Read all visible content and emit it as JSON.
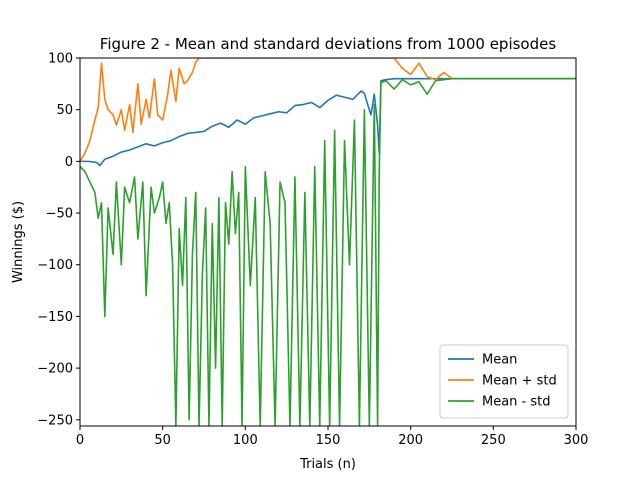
{
  "chart_data": {
    "type": "line",
    "title": "Figure 2 - Mean and standard deviations from 1000 episodes",
    "xlabel": "Trials (n)",
    "ylabel": "Winnings ($)",
    "xlim": [
      0,
      300
    ],
    "ylim": [
      -256,
      100
    ],
    "x_ticks": [
      0,
      50,
      100,
      150,
      200,
      250,
      300
    ],
    "y_ticks": [
      -250,
      -200,
      -150,
      -100,
      -50,
      0,
      50,
      100
    ],
    "x_tick_labels": [
      "0",
      "50",
      "100",
      "150",
      "200",
      "250",
      "300"
    ],
    "y_tick_labels": [
      "−250",
      "−200",
      "−150",
      "−100",
      "−50",
      "0",
      "50",
      "100"
    ],
    "grid": false,
    "legend_position": "lower-right",
    "series": [
      {
        "name": "Mean",
        "color": "#1f77b4",
        "x": [
          0,
          5,
          10,
          12,
          15,
          20,
          25,
          30,
          35,
          40,
          45,
          50,
          55,
          60,
          65,
          70,
          75,
          80,
          85,
          90,
          95,
          100,
          105,
          110,
          115,
          120,
          125,
          130,
          135,
          140,
          145,
          150,
          155,
          160,
          165,
          170,
          172,
          174,
          176,
          178,
          180,
          181,
          182,
          185,
          190,
          200,
          210,
          220,
          230,
          240,
          250,
          260,
          270,
          280,
          290,
          300
        ],
        "y": [
          0,
          0,
          -1,
          -4,
          2,
          5,
          9,
          11,
          14,
          17,
          15,
          18,
          20,
          24,
          27,
          28,
          29,
          34,
          37,
          33,
          40,
          36,
          42,
          44,
          46,
          48,
          47,
          54,
          55,
          57,
          52,
          59,
          64,
          62,
          60,
          68,
          66,
          55,
          45,
          65,
          35,
          8,
          78,
          79,
          80,
          80,
          80,
          80,
          80,
          80,
          80,
          80,
          80,
          80,
          80,
          80
        ]
      },
      {
        "name": "Mean + std",
        "color": "#ff7f0e",
        "x": [
          0,
          3,
          6,
          9,
          11,
          13,
          15,
          17,
          20,
          22,
          25,
          27,
          30,
          32,
          35,
          37,
          40,
          42,
          45,
          47,
          50,
          53,
          55,
          58,
          60,
          63,
          65,
          68,
          70,
          72,
          75,
          78,
          80,
          90,
          100,
          120,
          140,
          160,
          180,
          190,
          195,
          200,
          205,
          210,
          215,
          220,
          225,
          230,
          250,
          300
        ],
        "y": [
          0,
          8,
          20,
          40,
          52,
          95,
          60,
          50,
          45,
          35,
          50,
          30,
          55,
          28,
          75,
          36,
          60,
          42,
          80,
          45,
          40,
          64,
          88,
          58,
          90,
          75,
          78,
          86,
          96,
          100,
          100,
          100,
          100,
          100,
          100,
          100,
          100,
          100,
          100,
          100,
          90,
          84,
          95,
          82,
          79,
          86,
          80,
          80,
          80,
          80
        ]
      },
      {
        "name": "Mean - std",
        "color": "#2ca02c",
        "x": [
          0,
          3,
          6,
          9,
          11,
          13,
          15,
          17,
          20,
          22,
          25,
          27,
          30,
          33,
          35,
          38,
          40,
          43,
          45,
          48,
          50,
          52,
          54,
          56,
          58,
          60,
          62,
          64,
          66,
          68,
          70,
          72,
          74,
          76,
          78,
          80,
          82,
          84,
          86,
          88,
          90,
          92,
          94,
          96,
          98,
          100,
          103,
          106,
          109,
          112,
          115,
          118,
          121,
          124,
          127,
          130,
          133,
          136,
          139,
          142,
          145,
          148,
          151,
          154,
          157,
          160,
          163,
          166,
          169,
          172,
          175,
          178,
          180,
          181,
          182,
          185,
          190,
          195,
          200,
          205,
          210,
          215,
          220,
          225,
          230,
          250,
          300
        ],
        "y": [
          -5,
          -10,
          -20,
          -30,
          -55,
          -40,
          -150,
          -45,
          -90,
          -20,
          -100,
          -25,
          -40,
          -15,
          -75,
          -20,
          -130,
          -25,
          -50,
          -35,
          -20,
          -60,
          -40,
          -100,
          -256,
          -65,
          -120,
          -35,
          -250,
          -90,
          -30,
          -256,
          -110,
          -45,
          -256,
          -60,
          -200,
          -35,
          -256,
          -40,
          -80,
          -10,
          -70,
          -30,
          -256,
          -5,
          -120,
          -35,
          -256,
          -10,
          -60,
          -256,
          -20,
          -40,
          -256,
          -15,
          -256,
          -30,
          -256,
          -5,
          -256,
          20,
          -256,
          30,
          -256,
          20,
          -100,
          40,
          -256,
          50,
          -256,
          55,
          -256,
          -10,
          76,
          78,
          70,
          79,
          74,
          77,
          65,
          78,
          79,
          80,
          80,
          80,
          80
        ]
      }
    ]
  }
}
